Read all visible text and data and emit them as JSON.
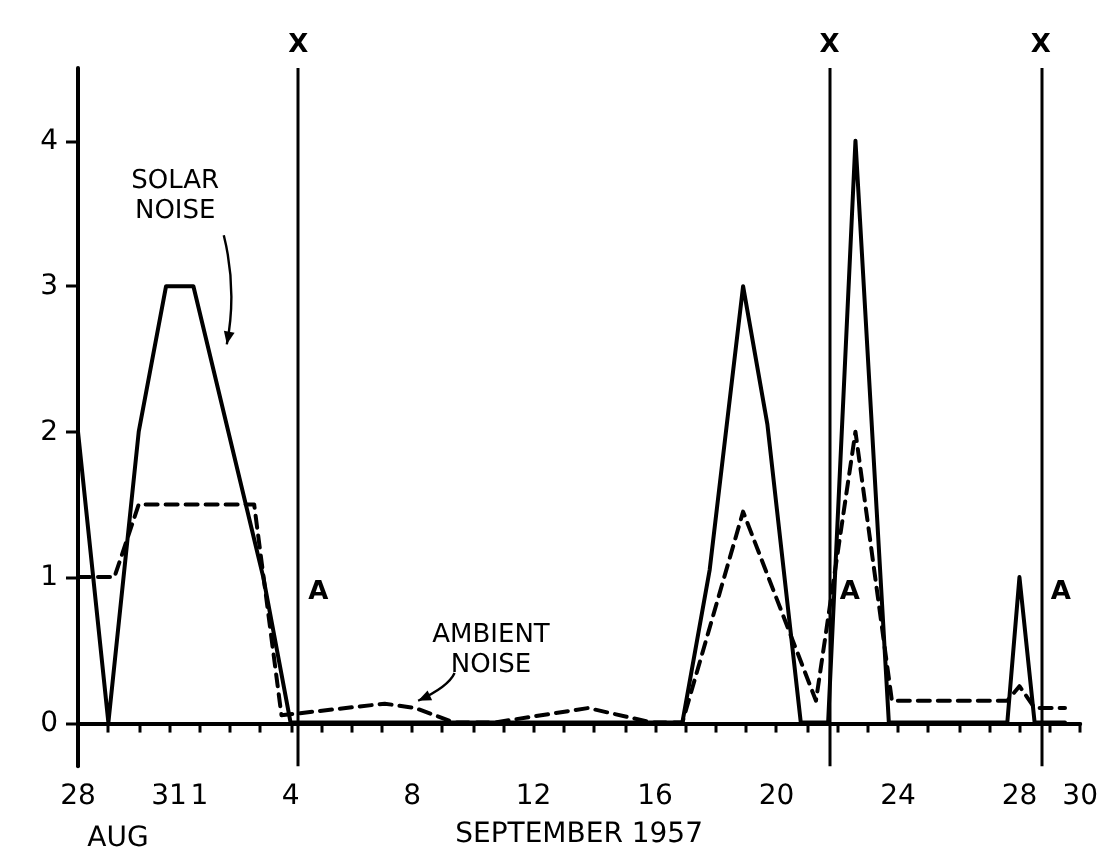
{
  "chart_data": {
    "type": "line",
    "xlabel": "SEPTEMBER 1957",
    "xlim": [
      "1957-08-28",
      "1957-09-30"
    ],
    "ylim": [
      -0.3,
      4.5
    ],
    "xticks": [
      {
        "value": "1957-08-28",
        "label": "28"
      },
      {
        "value": "1957-08-29",
        "label": null
      },
      {
        "value": "1957-08-30",
        "label": null
      },
      {
        "value": "1957-08-31",
        "label": "31"
      },
      {
        "value": "1957-09-01",
        "label": "1"
      },
      {
        "value": "1957-09-02",
        "label": null
      },
      {
        "value": "1957-09-03",
        "label": null
      },
      {
        "value": "1957-09-04",
        "label": "4"
      },
      {
        "value": "1957-09-05",
        "label": null
      },
      {
        "value": "1957-09-06",
        "label": null
      },
      {
        "value": "1957-09-07",
        "label": null
      },
      {
        "value": "1957-09-08",
        "label": "8"
      },
      {
        "value": "1957-09-09",
        "label": null
      },
      {
        "value": "1957-09-10",
        "label": null
      },
      {
        "value": "1957-09-11",
        "label": null
      },
      {
        "value": "1957-09-12",
        "label": "12"
      },
      {
        "value": "1957-09-13",
        "label": null
      },
      {
        "value": "1957-09-14",
        "label": null
      },
      {
        "value": "1957-09-15",
        "label": null
      },
      {
        "value": "1957-09-16",
        "label": "16"
      },
      {
        "value": "1957-09-17",
        "label": null
      },
      {
        "value": "1957-09-18",
        "label": null
      },
      {
        "value": "1957-09-19",
        "label": null
      },
      {
        "value": "1957-09-20",
        "label": "20"
      },
      {
        "value": "1957-09-21",
        "label": null
      },
      {
        "value": "1957-09-22",
        "label": null
      },
      {
        "value": "1957-09-23",
        "label": null
      },
      {
        "value": "1957-09-24",
        "label": "24"
      },
      {
        "value": "1957-09-25",
        "label": null
      },
      {
        "value": "1957-09-26",
        "label": null
      },
      {
        "value": "1957-09-27",
        "label": null
      },
      {
        "value": "1957-09-28",
        "label": "28"
      },
      {
        "value": "1957-09-29",
        "label": null
      },
      {
        "value": "1957-09-30",
        "label": "30"
      }
    ],
    "yticks": [
      0,
      1,
      2,
      3,
      4
    ],
    "grid": false,
    "legend": false,
    "marker": "none",
    "series": [
      {
        "name": "SOLAR NOISE",
        "color": "#000000",
        "line_style": "solid",
        "x": [
          "1957-08-28",
          "1957-08-29",
          "1957-08-30",
          "1957-08-30T21:36",
          "1957-08-31T19:12",
          "1957-09-03T02:24",
          "1957-09-04",
          "1957-09-16T21:36",
          "1957-09-17T19:12",
          "1957-09-18T21:36",
          "1957-09-19T16:48",
          "1957-09-20T19:12",
          "1957-09-21T16:48",
          "1957-09-22T14:24",
          "1957-09-23T16:48",
          "1957-09-27T14:24",
          "1957-09-28",
          "1957-09-28T12:00",
          "1957-09-29T12:00"
        ],
        "values": [
          2.0,
          0,
          2.0,
          3.0,
          3.0,
          1.0,
          0,
          0,
          1.05,
          3.0,
          2.05,
          0,
          0,
          4.0,
          0,
          0,
          1.0,
          0,
          0
        ]
      },
      {
        "name": "AMBIENT NOISE",
        "color": "#000000",
        "line_style": "dashed",
        "x": [
          "1957-08-28",
          "1957-08-29T04:48",
          "1957-08-30",
          "1957-09-02T19:12",
          "1957-09-03T16:48",
          "1957-09-07T02:24",
          "1957-09-08T02:24",
          "1957-09-09T09:36",
          "1957-09-10T16:48",
          "1957-09-13T19:12",
          "1957-09-15T21:36",
          "1957-09-16T21:36",
          "1957-09-18T21:36",
          "1957-09-21T07:12",
          "1957-09-22T14:24",
          "1957-09-23T19:12",
          "1957-09-27T14:24",
          "1957-09-28",
          "1957-09-28T12:00",
          "1957-09-29T12:00"
        ],
        "values": [
          1.0,
          1.0,
          1.5,
          1.5,
          0.05,
          0.13,
          0.1,
          0,
          0,
          0.1,
          0,
          0,
          1.45,
          0.15,
          2.0,
          0.15,
          0.15,
          0.25,
          0.1,
          0.1
        ]
      }
    ],
    "ref_lines": [
      {
        "axis": "x",
        "value": "1957-09-04T06:00",
        "label": "X",
        "color": "#000000"
      },
      {
        "axis": "x",
        "value": "1957-09-21T18:00",
        "label": "X",
        "color": "#000000"
      },
      {
        "axis": "x",
        "value": "1957-09-28T16:48",
        "label": "X",
        "color": "#000000"
      }
    ],
    "annotations": [
      "AUG",
      {
        "text": "A",
        "x": "1957-09-04T06:00",
        "y": 0.9
      },
      {
        "text": "A",
        "x": "1957-09-21T18:00",
        "y": 0.9
      },
      {
        "text": "A",
        "x": "1957-09-28T16:48",
        "y": 0.9
      }
    ]
  }
}
